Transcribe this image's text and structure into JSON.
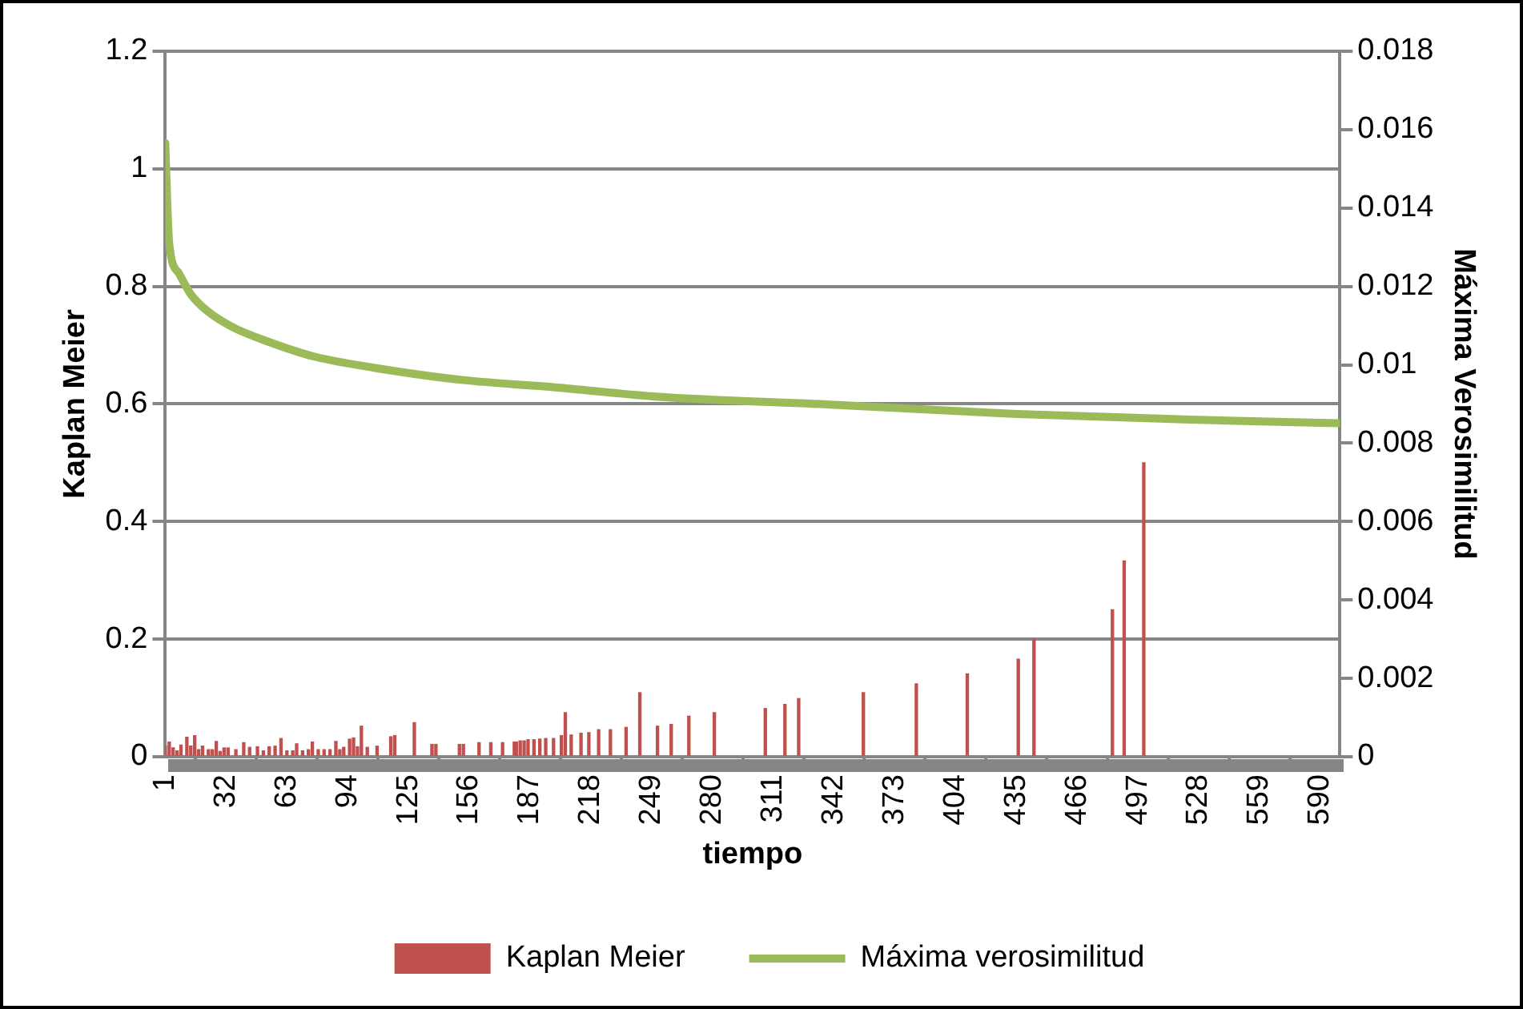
{
  "chart_data": {
    "type": "bar",
    "xlabel": "tiempo",
    "ylabel": "Kaplan Meier",
    "y2label": "Máxima Verosimilitud",
    "xlim": [
      1,
      600
    ],
    "xticks": [
      1,
      32,
      63,
      94,
      125,
      156,
      187,
      218,
      249,
      280,
      311,
      342,
      373,
      404,
      435,
      466,
      497,
      528,
      559,
      590
    ],
    "ylim": [
      0,
      1.2
    ],
    "yticks": [
      0,
      0.2,
      0.4,
      0.6,
      0.8,
      1,
      1.2
    ],
    "y2lim": [
      0,
      0.018
    ],
    "y2ticks": [
      0,
      0.002,
      0.004,
      0.006,
      0.008,
      0.01,
      0.012,
      0.014,
      0.016,
      0.018
    ],
    "grid": "y",
    "legend": "bottom",
    "series": [
      {
        "name": "Kaplan Meier",
        "color": "#c0504d",
        "x": [
          1,
          3,
          5,
          7,
          9,
          12,
          14,
          16,
          18,
          20,
          23,
          25,
          27,
          29,
          31,
          33,
          37,
          41,
          44,
          48,
          51,
          54,
          57,
          60,
          63,
          66,
          68,
          71,
          74,
          76,
          79,
          82,
          85,
          88,
          90,
          92,
          95,
          97,
          99,
          101,
          104,
          109,
          116,
          118,
          128,
          137,
          139,
          151,
          153,
          161,
          167,
          173,
          179,
          180,
          182,
          184,
          186,
          189,
          192,
          195,
          199,
          203,
          205,
          208,
          213,
          217,
          222,
          228,
          236,
          243,
          252,
          259,
          268,
          281,
          307,
          317,
          324,
          357,
          384,
          410,
          436,
          444,
          484,
          490,
          500
        ],
        "values": [
          0.018,
          0.025,
          0.015,
          0.01,
          0.02,
          0.033,
          0.018,
          0.036,
          0.012,
          0.018,
          0.012,
          0.012,
          0.026,
          0.009,
          0.015,
          0.015,
          0.012,
          0.024,
          0.016,
          0.017,
          0.01,
          0.017,
          0.018,
          0.031,
          0.01,
          0.01,
          0.022,
          0.01,
          0.012,
          0.025,
          0.012,
          0.012,
          0.012,
          0.026,
          0.012,
          0.016,
          0.03,
          0.032,
          0.017,
          0.052,
          0.016,
          0.018,
          0.034,
          0.036,
          0.058,
          0.021,
          0.021,
          0.021,
          0.021,
          0.024,
          0.024,
          0.024,
          0.025,
          0.025,
          0.027,
          0.027,
          0.029,
          0.029,
          0.03,
          0.031,
          0.031,
          0.036,
          0.075,
          0.037,
          0.04,
          0.041,
          0.046,
          0.046,
          0.05,
          0.109,
          0.052,
          0.055,
          0.069,
          0.075,
          0.082,
          0.089,
          0.099,
          0.109,
          0.124,
          0.141,
          0.166,
          0.2,
          0.25,
          0.333,
          0.5
        ]
      },
      {
        "name": "Máxima verosimilitud",
        "type": "line",
        "axis": "y2",
        "color": "#9bbb59",
        "x": [
          1,
          2,
          3,
          8,
          14,
          23,
          35,
          53,
          77,
          108,
          153,
          199,
          251,
          342,
          433,
          524,
          600
        ],
        "values": [
          0.01566,
          0.01415,
          0.01309,
          0.01233,
          0.0118,
          0.01135,
          0.01097,
          0.0106,
          0.01021,
          0.00992,
          0.00961,
          0.00943,
          0.00919,
          0.00898,
          0.00875,
          0.0086,
          0.00851
        ]
      }
    ]
  }
}
